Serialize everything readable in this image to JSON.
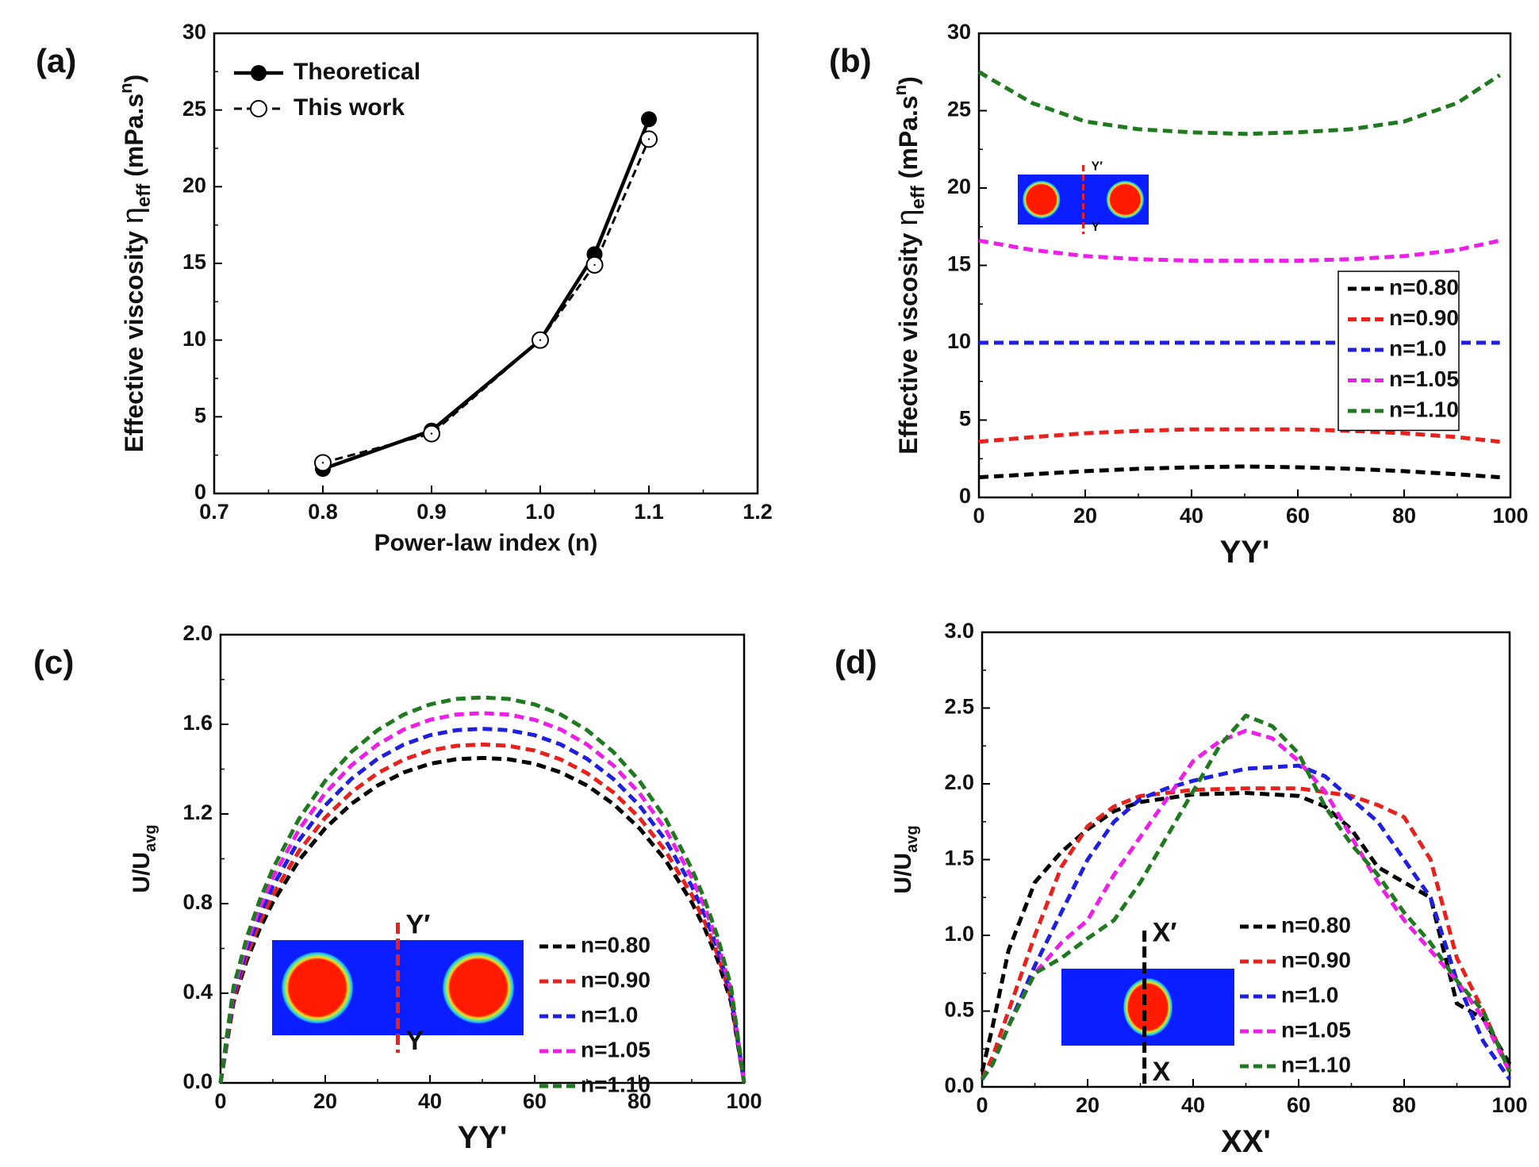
{
  "chart_data": [
    {
      "id": "a",
      "panel_label": "(a)",
      "type": "line",
      "xlabel": "Power-law index (n)",
      "ylabel_main": "Effective viscosity",
      "ylabel_eta": "η",
      "ylabel_sub": "eff",
      "ylabel_unit": "(mPa.s",
      "ylabel_sup": "n",
      "ylabel_close": ")",
      "xlim": [
        0.7,
        1.2
      ],
      "ylim": [
        0,
        30
      ],
      "xticks": [
        0.7,
        0.8,
        0.9,
        1.0,
        1.1,
        1.2
      ],
      "xtick_labels": [
        "0.7",
        "0.8",
        "0.9",
        "1.0",
        "1.1",
        "1.2"
      ],
      "yticks": [
        0,
        5,
        10,
        15,
        20,
        25,
        30
      ],
      "ytick_labels": [
        "0",
        "5",
        "10",
        "15",
        "20",
        "25",
        "30"
      ],
      "x": [
        0.8,
        0.9,
        1.0,
        1.05,
        1.1
      ],
      "series": [
        {
          "name": "Theoretical",
          "values": [
            1.6,
            4.1,
            10.0,
            15.6,
            24.4
          ],
          "color": "#000000",
          "style": "solid",
          "marker": "filled-circle"
        },
        {
          "name": "This work",
          "values": [
            2.0,
            3.9,
            10.0,
            14.9,
            23.1
          ],
          "color": "#000000",
          "style": "dashed",
          "marker": "open-circle"
        }
      ],
      "legend_position": "top-left"
    },
    {
      "id": "b",
      "panel_label": "(b)",
      "type": "line",
      "xlabel": "YY'",
      "ylabel_main": "Effective viscosity",
      "ylabel_eta": "η",
      "ylabel_sub": "eff",
      "ylabel_unit": "(mPa.s",
      "ylabel_sup": "n",
      "ylabel_close": ")",
      "xlim": [
        0,
        100
      ],
      "ylim": [
        0,
        30
      ],
      "xticks": [
        0,
        20,
        40,
        60,
        80,
        100
      ],
      "xtick_labels": [
        "0",
        "20",
        "40",
        "60",
        "80",
        "100"
      ],
      "yticks": [
        0,
        5,
        10,
        15,
        20,
        25,
        30
      ],
      "ytick_labels": [
        "0",
        "5",
        "10",
        "15",
        "20",
        "25",
        "30"
      ],
      "x": [
        0,
        10,
        20,
        30,
        40,
        50,
        60,
        70,
        80,
        90,
        98
      ],
      "series": [
        {
          "name": "n=0.80",
          "values": [
            1.3,
            1.5,
            1.7,
            1.85,
            1.95,
            2.0,
            1.95,
            1.85,
            1.7,
            1.5,
            1.3
          ],
          "color": "#000000"
        },
        {
          "name": "n=0.90",
          "values": [
            3.6,
            3.9,
            4.15,
            4.3,
            4.4,
            4.4,
            4.4,
            4.3,
            4.15,
            3.9,
            3.6
          ],
          "color": "#e8211c"
        },
        {
          "name": "n=1.0",
          "values": [
            10.0,
            10.0,
            10.0,
            10.0,
            10.0,
            10.0,
            10.0,
            10.0,
            10.0,
            10.0,
            10.0
          ],
          "color": "#1f1fe0"
        },
        {
          "name": "n=1.05",
          "values": [
            16.6,
            16.0,
            15.6,
            15.4,
            15.3,
            15.3,
            15.3,
            15.4,
            15.6,
            16.0,
            16.6
          ],
          "color": "#ec1ee8"
        },
        {
          "name": "n=1.10",
          "values": [
            27.5,
            25.5,
            24.3,
            23.8,
            23.6,
            23.5,
            23.6,
            23.8,
            24.3,
            25.5,
            27.3
          ],
          "color": "#1f7a1f"
        }
      ],
      "inset": {
        "top_label": "Y′",
        "bottom_label": "Y",
        "cut": "vertical",
        "circles": 2
      },
      "legend_position": "center-right"
    },
    {
      "id": "c",
      "panel_label": "(c)",
      "type": "line",
      "xlabel": "YY'",
      "ylabel_main": "U/U",
      "ylabel_sub": "avg",
      "xlim": [
        0,
        100
      ],
      "ylim": [
        0,
        2.0
      ],
      "xticks": [
        0,
        20,
        40,
        60,
        80,
        100
      ],
      "xtick_labels": [
        "0",
        "20",
        "40",
        "60",
        "80",
        "100"
      ],
      "yticks": [
        0,
        0.4,
        0.8,
        1.2,
        1.6,
        2.0
      ],
      "ytick_labels": [
        "0.0",
        "0.4",
        "0.8",
        "1.2",
        "1.6",
        "2.0"
      ],
      "x": [
        0,
        2.5,
        5,
        7.5,
        10,
        15,
        20,
        25,
        30,
        35,
        40,
        45,
        50,
        55,
        60,
        65,
        70,
        75,
        80,
        85,
        90,
        92.5,
        95,
        97.5,
        100
      ],
      "series": [
        {
          "name": "n=0.80",
          "peak": 1.45,
          "color": "#000000"
        },
        {
          "name": "n=0.90",
          "peak": 1.51,
          "color": "#e8211c"
        },
        {
          "name": "n=1.0",
          "peak": 1.58,
          "color": "#1f1fe0"
        },
        {
          "name": "n=1.05",
          "peak": 1.65,
          "color": "#ec1ee8"
        },
        {
          "name": "n=1.10",
          "peak": 1.72,
          "color": "#1f7a1f"
        }
      ],
      "inset": {
        "top_label": "Y′",
        "bottom_label": "Y",
        "cut": "vertical",
        "circles": 2
      },
      "legend_position": "bottom-right"
    },
    {
      "id": "d",
      "panel_label": "(d)",
      "type": "line",
      "xlabel": "XX'",
      "ylabel_main": "U/U",
      "ylabel_sub": "avg",
      "xlim": [
        0,
        100
      ],
      "ylim": [
        0,
        3.0
      ],
      "xticks": [
        0,
        20,
        40,
        60,
        80,
        100
      ],
      "xtick_labels": [
        "0",
        "20",
        "40",
        "60",
        "80",
        "100"
      ],
      "yticks": [
        0,
        0.5,
        1.0,
        1.5,
        2.0,
        2.5,
        3.0
      ],
      "ytick_labels": [
        "0.0",
        "0.5",
        "1.0",
        "1.5",
        "2.0",
        "2.5",
        "3.0"
      ],
      "series": [
        {
          "name": "n=0.80",
          "color": "#000000",
          "x": [
            0,
            2,
            5,
            10,
            15,
            20,
            25,
            30,
            40,
            50,
            60,
            65,
            70,
            75,
            80,
            85,
            90,
            95,
            100
          ],
          "values": [
            0.1,
            0.4,
            0.9,
            1.35,
            1.55,
            1.7,
            1.82,
            1.88,
            1.93,
            1.94,
            1.92,
            1.85,
            1.7,
            1.45,
            1.35,
            1.25,
            0.55,
            0.45,
            0.15
          ]
        },
        {
          "name": "n=0.90",
          "color": "#e8211c",
          "x": [
            0,
            2,
            5,
            10,
            15,
            20,
            25,
            30,
            40,
            50,
            60,
            70,
            75,
            80,
            85,
            90,
            95,
            100
          ],
          "values": [
            0.05,
            0.2,
            0.5,
            1.0,
            1.45,
            1.72,
            1.85,
            1.92,
            1.96,
            1.97,
            1.97,
            1.92,
            1.86,
            1.78,
            1.5,
            0.85,
            0.5,
            0.1
          ]
        },
        {
          "name": "n=1.0",
          "color": "#1f1fe0",
          "x": [
            0,
            2,
            5,
            10,
            15,
            20,
            25,
            30,
            35,
            40,
            50,
            60,
            65,
            70,
            75,
            80,
            85,
            90,
            95,
            100
          ],
          "values": [
            0.05,
            0.15,
            0.4,
            0.8,
            1.15,
            1.5,
            1.75,
            1.9,
            1.97,
            2.02,
            2.1,
            2.12,
            2.05,
            1.9,
            1.75,
            1.5,
            1.25,
            0.7,
            0.3,
            0.05
          ]
        },
        {
          "name": "n=1.05",
          "color": "#ec1ee8",
          "x": [
            0,
            2,
            5,
            10,
            15,
            20,
            25,
            30,
            35,
            40,
            45,
            50,
            55,
            60,
            65,
            70,
            75,
            80,
            85,
            90,
            95,
            100
          ],
          "values": [
            0.05,
            0.15,
            0.4,
            0.75,
            0.95,
            1.1,
            1.4,
            1.65,
            1.9,
            2.15,
            2.28,
            2.35,
            2.3,
            2.15,
            1.95,
            1.65,
            1.35,
            1.1,
            0.9,
            0.7,
            0.45,
            0.1
          ]
        },
        {
          "name": "n=1.10",
          "color": "#1f7a1f",
          "x": [
            0,
            2,
            5,
            10,
            15,
            20,
            25,
            30,
            35,
            40,
            45,
            50,
            55,
            60,
            65,
            70,
            75,
            80,
            85,
            90,
            95,
            100
          ],
          "values": [
            0.05,
            0.15,
            0.4,
            0.75,
            0.85,
            0.98,
            1.1,
            1.35,
            1.65,
            1.95,
            2.25,
            2.45,
            2.38,
            2.2,
            1.85,
            1.6,
            1.4,
            1.15,
            0.95,
            0.7,
            0.5,
            0.1
          ]
        }
      ],
      "inset": {
        "top_label": "X′",
        "bottom_label": "X",
        "cut": "vertical",
        "circles": 1
      },
      "legend_position": "bottom-right"
    }
  ]
}
